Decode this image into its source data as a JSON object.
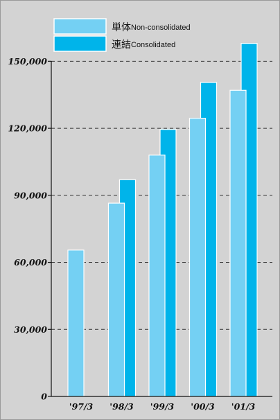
{
  "chart_data": {
    "type": "bar",
    "categories": [
      "'97/3",
      "'98/3",
      "'99/3",
      "'00/3",
      "'01/3"
    ],
    "series": [
      {
        "name_ja": "単体",
        "name": "Non-consolidated",
        "color": "#74d0f3",
        "values": [
          65500,
          86500,
          108000,
          124500,
          137000
        ]
      },
      {
        "name_ja": "連結",
        "name": "Consolidated",
        "color": "#00b4ea",
        "values": [
          null,
          97000,
          119500,
          140500,
          158000
        ]
      }
    ],
    "ylim": [
      0,
      165000
    ],
    "yticks": [
      0,
      30000,
      60000,
      90000,
      120000,
      150000
    ],
    "ytick_labels": [
      "0",
      "30,000",
      "60,000",
      "90,000",
      "120,000",
      "150,000"
    ],
    "grid": "dashed-horizontal",
    "legend": "top"
  }
}
